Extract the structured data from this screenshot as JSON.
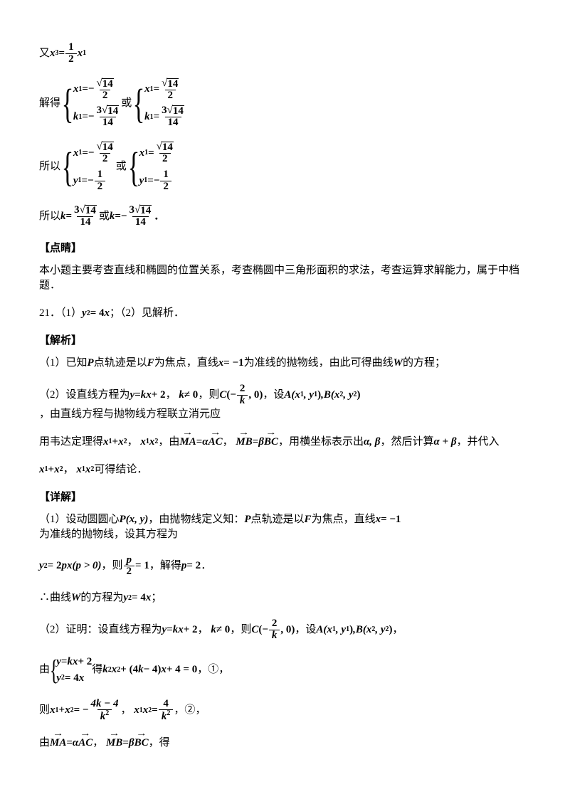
{
  "l1a": "又",
  "eq1": {
    "lhs_x": "x",
    "lhs_sub": "3",
    "frac_num": "1",
    "frac_den": "2",
    "rhs_x": "x",
    "rhs_sub": "1"
  },
  "l2a": "解得",
  "sys1": {
    "r1": {
      "x": "x",
      "sub": "1",
      "neg": "−",
      "num": "14",
      "den": "2"
    },
    "r2": {
      "x": "k",
      "sub": "1",
      "neg": "−",
      "num_pre": "3",
      "num": "14",
      "den": "14"
    }
  },
  "or": "或",
  "sys2": {
    "r1": {
      "x": "x",
      "sub": "1",
      "num": "14",
      "den": "2"
    },
    "r2": {
      "x": "k",
      "sub": "1",
      "num_pre": "3",
      "num": "14",
      "den": "14"
    }
  },
  "l3a": "所以",
  "sys3": {
    "r1": {
      "x": "x",
      "sub": "1",
      "neg": "−",
      "num": "14",
      "den": "2"
    },
    "r2": {
      "x": "y",
      "sub": "1",
      "neg": "−",
      "num": "1",
      "den": "2"
    }
  },
  "sys4": {
    "r1": {
      "x": "x",
      "sub": "1",
      "num": "14",
      "den": "2"
    },
    "r2": {
      "x": "y",
      "sub": "1",
      "neg": "−",
      "num": "1",
      "den": "2"
    }
  },
  "l_suoyi": "所以",
  "lk": {
    "k": "k",
    "num_pre": "3",
    "num": "14",
    "den": "14",
    "or": "或",
    "k2": "k",
    "neg": "−"
  },
  "dianjing_head": "【点睛】",
  "dianjing_body": "本小题主要考查直线和椭圆的位置关系，考查椭圆中三角形面积的求法，考查运算求解能力，属于中档题．",
  "q21": "21．（1）",
  "q21eq": {
    "y": "y",
    "y_sup": "2",
    "eq": " = 4",
    "x": "x"
  },
  "q21_tail": "；（2）见解析．",
  "jiexi_head": "【解析】",
  "jiexi_p1a": "（1）已知",
  "jiexi_p1b": "P",
  "jiexi_p1c": "点轨迹是以",
  "jiexi_p1d": "F",
  "jiexi_p1e": "为焦点，直线",
  "jiexi_p1_eq": {
    "x": "x",
    "eq": " = −1"
  },
  "jiexi_p1f": "为准线的抛物线，由此可得曲线",
  "jiexi_p1g": "W",
  "jiexi_p1h": "的方程；",
  "jiexi_p2a": "（2）设直线方程为",
  "jiexi_p2_eq1": {
    "y": "y",
    "eq": " = ",
    "k": "k",
    "x": "x",
    "plus": " + 2"
  },
  "jiexi_p2b": "，",
  "jiexi_p2_kneq": {
    "k": "k",
    "neq": " ≠ 0"
  },
  "jiexi_p2c": "，则",
  "jiexi_p2_C": "C",
  "jiexi_p2_lp": "(−",
  "jiexi_p2_frac": {
    "num": "2",
    "den": "k"
  },
  "jiexi_p2_rp": ", 0)",
  "jiexi_p2d": "，设",
  "jiexi_p2_A": "A",
  "jiexi_p2_ax": "(x",
  "jiexi_p2_a1": "1",
  "jiexi_p2_cma": ", y",
  "jiexi_p2_a1b": "1",
  "jiexi_p2_arp": ")",
  "jiexi_p2_sep": ",",
  "jiexi_p2_B": "B",
  "jiexi_p2_bx": "(x",
  "jiexi_p2_b2": "2",
  "jiexi_p2_cmb": ", y",
  "jiexi_p2_b2b": "2",
  "jiexi_p2_brp": ")",
  "jiexi_p2e": "，由直线方程与抛物线方程联立消元应",
  "jiexi_p3a": "用韦达定理得",
  "jiexi_p3_sum": {
    "x1": "x",
    "s1": "1",
    "plus": " + ",
    "x2": "x",
    "s2": "2"
  },
  "jiexi_p3b": "，",
  "jiexi_p3_prod": {
    "x1": "x",
    "s1": "1",
    "x2": "x",
    "s2": "2"
  },
  "jiexi_p3c": "，由",
  "vec_MA": "MA",
  "eq_sym": " = ",
  "alpha": "α",
  "vec_AC": "AC",
  "jiexi_p3d": "，",
  "vec_MB": "MB",
  "beta": "β",
  "vec_BC": "BC",
  "jiexi_p3e": "，用横坐标表示出",
  "alpha_beta": "α, β",
  "jiexi_p3f": "，然后计算",
  "sum_ab": "α + β",
  "jiexi_p3g": "，并代入",
  "jiexi_p4a": "x",
  "jiexi_p4a_s": "1",
  "jiexi_p4a_pl": " + ",
  "jiexi_p4a2": "x",
  "jiexi_p4a2_s": "2",
  "jiexi_p4a_cma": "，",
  "jiexi_p4b": "x",
  "jiexi_p4b_s": "1",
  "jiexi_p4b2": "x",
  "jiexi_p4b2_s": "2",
  "jiexi_p4_tail": "可得结论．",
  "xiangjie_head": "【详解】",
  "xj1a": "（1）设动圆圆心 ",
  "xj1P": "P",
  "xj1_xy": "(x, y)",
  "xj1b": "，由抛物线定义知：",
  "xj1P2": "P",
  "xj1c": "点轨迹是以",
  "xj1F": "F",
  "xj1d": "为焦点，直线",
  "xj1eq": {
    "x": "x",
    "eq": " = −1"
  },
  "xj1e": "为准线的抛物线，设其方程为",
  "xj2_eq": {
    "y": "y",
    "ysup": "2",
    "eq": " = 2",
    "p": "p",
    "x": "x",
    "cond": "(p > 0)"
  },
  "xj2a": "，则",
  "xj2_frac": {
    "num": "p",
    "den": "2"
  },
  "xj2_eq1": " = 1",
  "xj2b": "，解得 ",
  "xj2p": "p",
  "xj2_eq2": " = 2",
  "xj2c": "．",
  "xj3a": "∴曲线 ",
  "xj3W": "W",
  "xj3b": " 的方程为 ",
  "xj3_eq": {
    "y": "y",
    "ysup": "2",
    "eq": " = 4",
    "x": "x"
  },
  "xj3c": "；",
  "xj4a": "（2）证明：设直线方程为 ",
  "xj4_eq1": {
    "y": "y",
    "eq": " = ",
    "k": "k",
    "x": "x",
    "plus": " + 2"
  },
  "xj4b": "，",
  "xj4_kneq": {
    "k": "k",
    "neq": " ≠ 0"
  },
  "xj4c": "，则",
  "xj4_C": "C",
  "xj4_lp": "(−",
  "xj4_frac": {
    "num": "2",
    "den": "k"
  },
  "xj4_rp": ", 0)",
  "xj4d": "，设",
  "xj4_A": "A",
  "xj4_ax": "(x",
  "xj4_a1": "1",
  "xj4_cma": ", y",
  "xj4_a1b": "1",
  "xj4_arp": ")",
  "xj4_sep": ",",
  "xj4_B": "B",
  "xj4_bx": "(x",
  "xj4_b2": "2",
  "xj4_cmb": ", y",
  "xj4_b2b": "2",
  "xj4_brp": ")",
  "xj4e": "，",
  "xj5a": "由",
  "xj5_sys": {
    "r1": {
      "y": "y",
      "eq": " = ",
      "k": "k",
      "x": "x",
      "plus": " + 2"
    },
    "r2": {
      "y": "y",
      "ysup": "2",
      "eq": " = 4",
      "x": "x"
    }
  },
  "xj5b": "得",
  "xj5_eq": {
    "k": "k",
    "ksup": "2",
    "x": "x",
    "xsup": "2",
    "plus": " + (4",
    "k2": "k",
    "minus": " − 4)",
    "x2": "x",
    "plus2": " + 4 = 0"
  },
  "xj5c": "，①，",
  "xj6a": "则",
  "xj6_sum": {
    "x1": "x",
    "s1": "1",
    "plus": " + ",
    "x2": "x",
    "s2": "2",
    "eq": " = −"
  },
  "xj6_frac1": {
    "num": "4k − 4",
    "den": "k",
    "densup": "2"
  },
  "xj6b": "，",
  "xj6_prod": {
    "x1": "x",
    "s1": "1",
    "x2": "x",
    "s2": "2",
    "eq": " = "
  },
  "xj6_frac2": {
    "num": "4",
    "den": "k",
    "densup": "2"
  },
  "xj6c": "，②，",
  "xj7a": "由",
  "xj7_v1": "MA",
  "xj7_eq": " = ",
  "xj7_a": "α",
  "xj7_v2": "AC",
  "xj7b": "，",
  "xj7_v3": "MB",
  "xj7_b": "β",
  "xj7_v4": "BC",
  "xj7c": "，得"
}
